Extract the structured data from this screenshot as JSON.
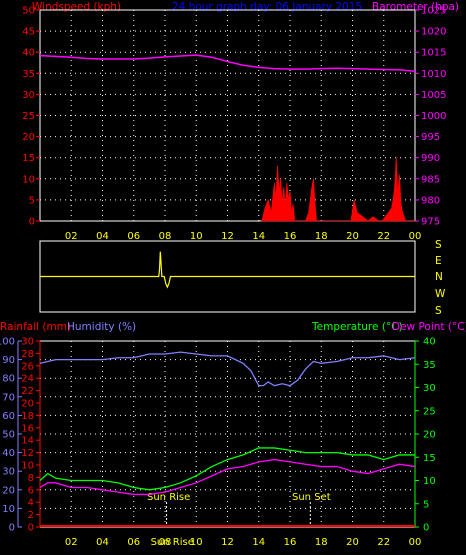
{
  "header": {
    "windspeed_label": "Windspeed (kph)",
    "title": "24 hour graph day: 06 January 2015",
    "barometer_label": "Barometer (hpa)"
  },
  "lower_header": {
    "rainfall_label": "Rainfall (mm)",
    "humidity_label": "Humidity (%)",
    "temperature_label": "Temperature (°C)",
    "dewpoint_label": "Dew Point (°C)"
  },
  "colors": {
    "windspeed": "#ff0000",
    "barometer": "#ff00ff",
    "wind_direction": "#ffff00",
    "humidity": "#8080ff",
    "temperature": "#00ff00",
    "dewpoint": "#ff00ff",
    "rainfall": "#ff0000",
    "title": "#0000ff",
    "grid": "#ffffff",
    "time_axis": "#ffff00"
  },
  "direction_labels": [
    "S",
    "E",
    "N",
    "W",
    "S"
  ],
  "sun_labels": {
    "sunrise": "Sun Rise",
    "sunset": "Sun Set",
    "bottom_marker": "Sun Rise"
  },
  "chart_data": [
    {
      "type": "line",
      "name": "wind-barometer",
      "x_ticks": [
        "02",
        "04",
        "06",
        "08",
        "10",
        "12",
        "14",
        "16",
        "18",
        "20",
        "22",
        "00"
      ],
      "y_left": {
        "label": "Windspeed (kph)",
        "ylim": [
          0,
          50
        ],
        "ticks": [
          0,
          5,
          10,
          15,
          20,
          25,
          30,
          35,
          40,
          45,
          50
        ]
      },
      "y_right": {
        "label": "Barometer (hpa)",
        "ylim": [
          975,
          1025
        ],
        "ticks": [
          975,
          980,
          985,
          990,
          995,
          1000,
          1005,
          1010,
          1015,
          1020,
          1025
        ]
      },
      "grid": true,
      "series": [
        {
          "name": "Barometer (hpa)",
          "axis": "right",
          "x": [
            0,
            1,
            2,
            3,
            4,
            5,
            6,
            7,
            8,
            9,
            10,
            11,
            12,
            13,
            14,
            15,
            16,
            17,
            18,
            19,
            20,
            21,
            22,
            23,
            24
          ],
          "values": [
            1014.2,
            1014.0,
            1013.8,
            1013.5,
            1013.4,
            1013.4,
            1013.4,
            1013.6,
            1013.9,
            1014.1,
            1014.3,
            1013.8,
            1012.8,
            1011.9,
            1011.4,
            1011.1,
            1011.0,
            1011.0,
            1011.1,
            1011.2,
            1011.1,
            1011.0,
            1010.9,
            1010.8,
            1010.5
          ]
        },
        {
          "name": "Windspeed (kph)",
          "axis": "left",
          "x": [
            14.2,
            14.4,
            14.6,
            14.8,
            15.0,
            15.1,
            15.2,
            15.3,
            15.4,
            15.5,
            15.6,
            15.7,
            15.8,
            15.9,
            16.0,
            16.1,
            16.2,
            16.3,
            16.5,
            16.7,
            17.0,
            17.2,
            17.4,
            17.5,
            17.6,
            17.7,
            19.9,
            20.1,
            20.3,
            21.0,
            21.3,
            21.7,
            21.9,
            22.1,
            22.3,
            22.5,
            22.6,
            22.7,
            22.8,
            22.9,
            23.0,
            23.1,
            23.2,
            23.4,
            24.0
          ],
          "values": [
            0,
            3,
            5,
            2,
            9,
            5,
            13,
            7,
            10,
            4,
            8,
            3,
            9,
            5,
            7,
            2,
            4,
            0,
            0,
            0,
            0,
            2,
            8,
            10,
            4,
            0,
            0,
            5,
            2,
            0,
            1,
            0,
            0,
            1,
            2,
            3,
            5,
            8,
            15,
            6,
            11,
            4,
            2,
            0,
            0
          ]
        }
      ]
    },
    {
      "type": "line",
      "name": "wind-direction",
      "x_ticks": [],
      "y_labels": [
        "S",
        "E",
        "N",
        "W",
        "S"
      ],
      "series": [
        {
          "name": "Direction",
          "x": [
            0,
            7.6,
            7.65,
            7.7,
            7.8,
            7.95,
            8.05,
            8.15,
            8.25,
            8.35,
            8.45,
            24
          ],
          "values": [
            0.5,
            0.5,
            0.6,
            0.85,
            0.5,
            0.5,
            0.4,
            0.35,
            0.4,
            0.5,
            0.5,
            0.5
          ]
        }
      ]
    },
    {
      "type": "line",
      "name": "temperature-humidity",
      "x_ticks": [
        "02",
        "04",
        "06",
        "08",
        "10",
        "12",
        "14",
        "16",
        "18",
        "20",
        "22",
        "00"
      ],
      "y_left_outer": {
        "label": "Humidity (%)",
        "ylim": [
          0,
          100
        ],
        "ticks": [
          0,
          10,
          20,
          30,
          40,
          50,
          60,
          70,
          80,
          90,
          100
        ]
      },
      "y_left_inner": {
        "label": "Rainfall (mm)",
        "ylim": [
          0,
          30
        ],
        "ticks": [
          0,
          2,
          4,
          6,
          8,
          10,
          12,
          14,
          16,
          18,
          20,
          22,
          24,
          26,
          28,
          30
        ]
      },
      "y_right": {
        "label": "Temperature (°C)",
        "ylim": [
          0,
          40
        ],
        "ticks": [
          0,
          5,
          10,
          15,
          20,
          25,
          30,
          35,
          40
        ]
      },
      "grid": true,
      "annotations": [
        {
          "text": "Sun Rise",
          "x": 8.1
        },
        {
          "text": "Sun Set",
          "x": 17.3
        }
      ],
      "series": [
        {
          "name": "Humidity (%)",
          "axis": "left_outer",
          "x": [
            0,
            1,
            2,
            3,
            4,
            5,
            6,
            7,
            8,
            9,
            10,
            11,
            12,
            13,
            13.5,
            14,
            14.3,
            14.6,
            15,
            15.5,
            16,
            16.5,
            17,
            17.5,
            18,
            19,
            20,
            21,
            22,
            23,
            24
          ],
          "values": [
            88,
            90,
            90,
            90,
            90,
            91,
            91,
            93,
            93,
            94,
            93,
            92,
            92,
            88,
            84,
            76,
            76,
            78,
            76,
            77,
            76,
            79,
            85,
            89,
            88,
            89,
            91,
            91,
            92,
            90,
            91
          ]
        },
        {
          "name": "Temperature (°C)",
          "axis": "right",
          "x": [
            0,
            0.5,
            1,
            2,
            3,
            4,
            5,
            6,
            7,
            8,
            9,
            10,
            11,
            12,
            13,
            14,
            15,
            16,
            17,
            18,
            19,
            20,
            21,
            22,
            23,
            24
          ],
          "values": [
            10,
            11.5,
            10.5,
            10,
            10,
            10,
            9.5,
            8.5,
            8,
            8.5,
            9.5,
            11,
            13,
            14.5,
            15.5,
            17,
            17,
            16.5,
            16,
            16,
            16,
            15.5,
            15.5,
            14.5,
            15.5,
            15.5
          ]
        },
        {
          "name": "Dew Point (°C)",
          "axis": "right",
          "x": [
            0,
            0.5,
            1,
            2,
            3,
            4,
            5,
            6,
            7,
            8,
            9,
            10,
            11,
            12,
            13,
            14,
            15,
            16,
            17,
            18,
            19,
            20,
            21,
            22,
            23,
            24
          ],
          "values": [
            8.5,
            9.5,
            9.5,
            8.5,
            8.5,
            8,
            7.5,
            7,
            7,
            7.5,
            8.5,
            9.5,
            11,
            12.5,
            13,
            14,
            14.5,
            14,
            13.5,
            13,
            13,
            12,
            11.5,
            12.5,
            13.5,
            13
          ]
        },
        {
          "name": "Rainfall (mm)",
          "axis": "left_inner",
          "x": [
            0,
            24
          ],
          "values": [
            0,
            0
          ]
        }
      ]
    }
  ]
}
